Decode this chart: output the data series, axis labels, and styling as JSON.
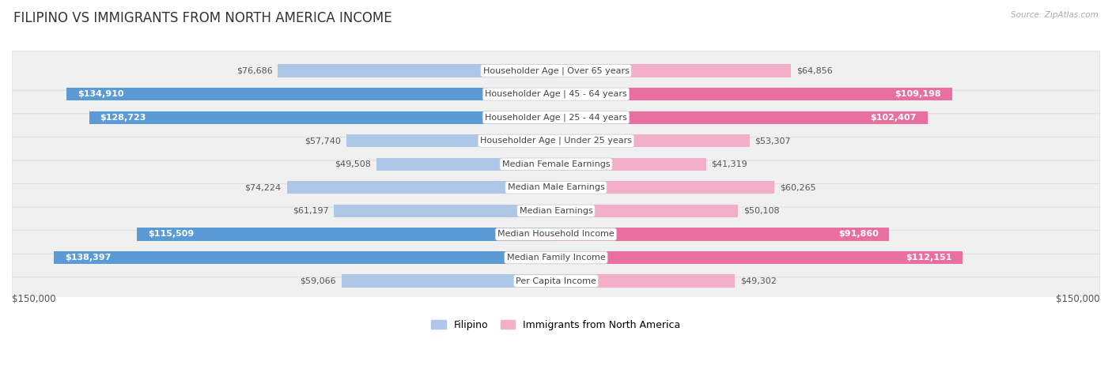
{
  "title": "FILIPINO VS IMMIGRANTS FROM NORTH AMERICA INCOME",
  "source": "Source: ZipAtlas.com",
  "categories": [
    "Per Capita Income",
    "Median Family Income",
    "Median Household Income",
    "Median Earnings",
    "Median Male Earnings",
    "Median Female Earnings",
    "Householder Age | Under 25 years",
    "Householder Age | 25 - 44 years",
    "Householder Age | 45 - 64 years",
    "Householder Age | Over 65 years"
  ],
  "filipino_values": [
    59066,
    138397,
    115509,
    61197,
    74224,
    49508,
    57740,
    128723,
    134910,
    76686
  ],
  "immigrant_values": [
    49302,
    112151,
    91860,
    50108,
    60265,
    41319,
    53307,
    102407,
    109198,
    64856
  ],
  "filipino_labels": [
    "$59,066",
    "$138,397",
    "$115,509",
    "$61,197",
    "$74,224",
    "$49,508",
    "$57,740",
    "$128,723",
    "$134,910",
    "$76,686"
  ],
  "immigrant_labels": [
    "$49,302",
    "$112,151",
    "$91,860",
    "$50,108",
    "$60,265",
    "$41,319",
    "$53,307",
    "$102,407",
    "$109,198",
    "$64,856"
  ],
  "filipino_color_light": "#aec6e8",
  "filipino_color_dark": "#5b9bd5",
  "immigrant_color_light": "#f4afc8",
  "immigrant_color_dark": "#e96fa0",
  "max_value": 150000,
  "background_color": "#ffffff",
  "row_color": "#f0f0f0",
  "row_border_color": "#d8d8d8",
  "label_inside_color": "#ffffff",
  "label_outside_color": "#555555",
  "inside_threshold": 90000,
  "title_fontsize": 12,
  "label_fontsize": 8,
  "cat_fontsize": 8
}
